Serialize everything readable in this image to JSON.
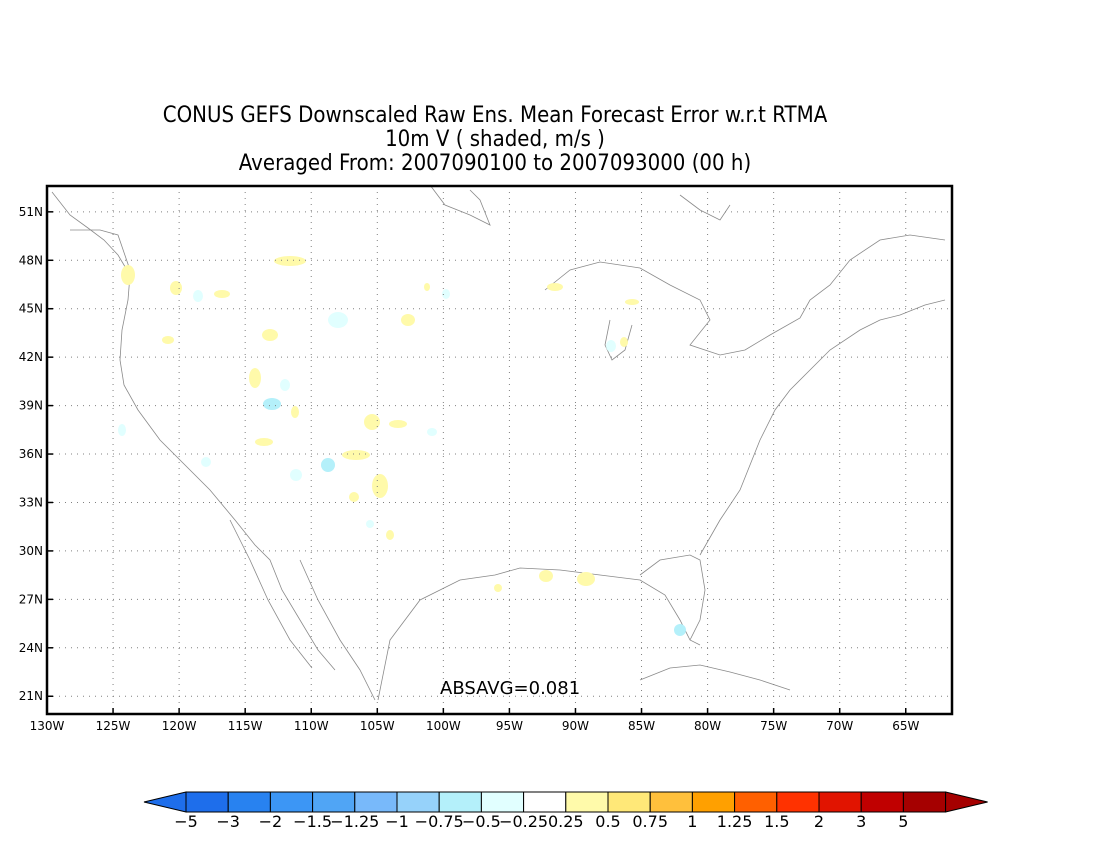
{
  "title": {
    "line1": "CONUS GEFS Downscaled Raw Ens. Mean Forecast Error w.r.t RTMA",
    "line2": "10m V ( shaded, m/s )",
    "line3": "Averaged From: 2007090100 to 2007093000 (00 h)"
  },
  "map": {
    "lat_ticks": [
      "51N",
      "48N",
      "45N",
      "42N",
      "39N",
      "36N",
      "33N",
      "30N",
      "27N",
      "24N",
      "21N"
    ],
    "lon_ticks": [
      "130W",
      "125W",
      "120W",
      "115W",
      "110W",
      "105W",
      "100W",
      "95W",
      "90W",
      "85W",
      "80W",
      "75W",
      "70W",
      "65W"
    ],
    "lat_values": [
      51,
      48,
      45,
      42,
      39,
      36,
      33,
      30,
      27,
      24,
      21
    ],
    "lon_values": [
      -130,
      -125,
      -120,
      -115,
      -110,
      -105,
      -100,
      -95,
      -90,
      -85,
      -80,
      -75,
      -70,
      -65
    ],
    "lon_range": [
      -130,
      -61.5
    ],
    "lat_range": [
      19.9,
      52.6
    ],
    "absavg": "ABSAVG=0.081",
    "grid": true,
    "coastline_color": "#888888"
  },
  "colorbar": {
    "labels": [
      "-5",
      "-3",
      "-2",
      "-1.5",
      "-1.25",
      "-1",
      "-0.75",
      "-0.5",
      "-0.25",
      "0.25",
      "0.5",
      "0.75",
      "1",
      "1.25",
      "1.5",
      "2",
      "3",
      "5"
    ],
    "colors": [
      "#1e6eeb",
      "#2882f0",
      "#3c96f5",
      "#50a5f5",
      "#78b9fa",
      "#96d2fa",
      "#b4f0fa",
      "#e1ffff",
      "#ffffff",
      "#fffaaa",
      "#ffe878",
      "#ffc03c",
      "#ffa000",
      "#ff6000",
      "#ff3200",
      "#e11400",
      "#c00000",
      "#a50000"
    ],
    "end_low": "#1e6eeb",
    "end_high": "#a50000"
  }
}
